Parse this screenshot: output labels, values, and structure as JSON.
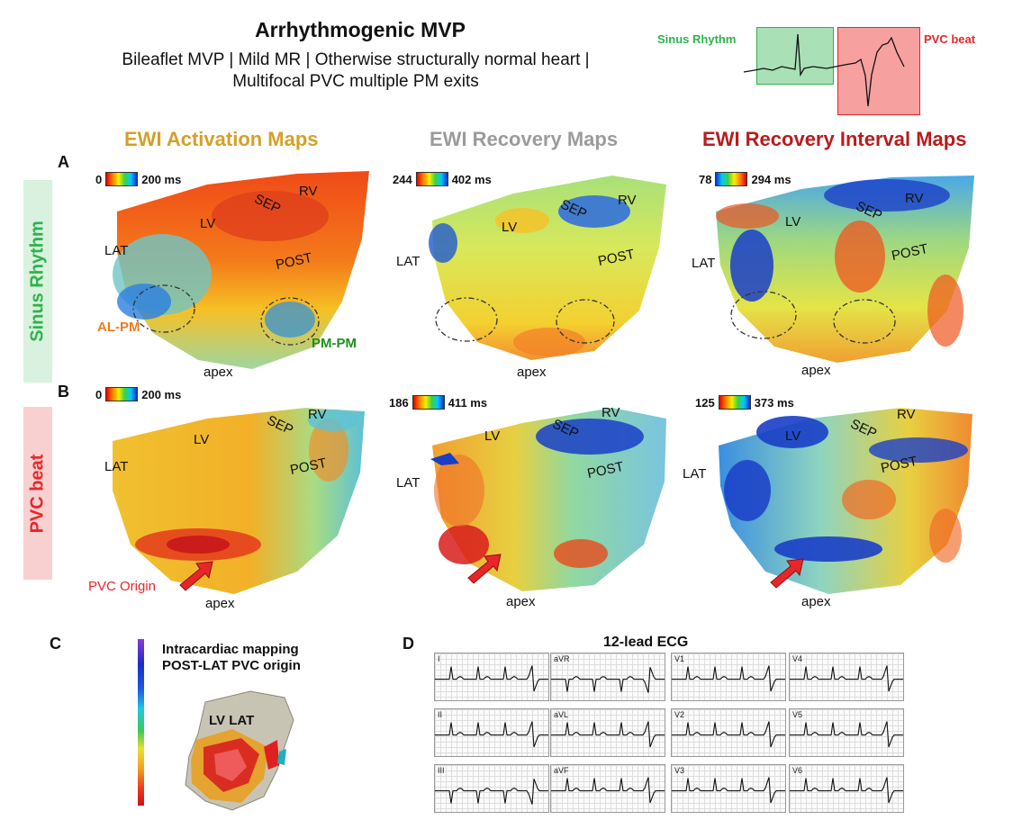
{
  "header": {
    "title": "Arrhythmogenic MVP",
    "subtitle_line1": "Bileaflet MVP | Mild MR | Otherwise structurally normal heart |",
    "subtitle_line2": "Multifocal PVC multiple PM exits"
  },
  "inset": {
    "sinus_label": "Sinus Rhythm",
    "pvc_label": "PVC beat",
    "sinus_color": "#2db34a",
    "pvc_color": "#e8262a"
  },
  "columns": [
    {
      "title": "EWI Activation Maps",
      "color": "#d4a02a"
    },
    {
      "title": "EWI Recovery Maps",
      "color": "#9b9b9b"
    },
    {
      "title": "EWI Recovery Interval Maps",
      "color": "#b81c1c"
    }
  ],
  "rows": [
    {
      "letter": "A",
      "label": "Sinus Rhythm",
      "label_color": "#2db34a",
      "bg": "#d9f2df"
    },
    {
      "letter": "B",
      "label": "PVC beat",
      "label_color": "#e8262a",
      "bg": "#f8d0d0"
    }
  ],
  "scales": {
    "a1": {
      "min": "0",
      "max": "200 ms"
    },
    "a2": {
      "min": "244",
      "max": "402 ms"
    },
    "a3": {
      "min": "78",
      "max": "294 ms"
    },
    "b1": {
      "min": "0",
      "max": "200 ms"
    },
    "b2": {
      "min": "186",
      "max": "411 ms"
    },
    "b3": {
      "min": "125",
      "max": "373 ms"
    }
  },
  "anatomy": {
    "lv": "LV",
    "sep": "SEP",
    "rv": "RV",
    "lat": "LAT",
    "post": "POST",
    "apex": "apex",
    "al_pm": "AL-PM",
    "pm_pm": "PM-PM",
    "pvc_origin": "PVC Origin",
    "al_pm_color": "#f07a20",
    "pm_pm_color": "#1f8f1f",
    "pvc_origin_color": "#e8262a"
  },
  "panel_c": {
    "letter": "C",
    "title_line1": "Intracardiac mapping",
    "title_line2": "POST-LAT PVC origin",
    "lv_lat": "LV LAT"
  },
  "panel_d": {
    "letter": "D",
    "title": "12-lead ECG",
    "leads": [
      "I",
      "aVR",
      "V1",
      "V4",
      "II",
      "aVL",
      "V2",
      "V5",
      "III",
      "aVF",
      "V3",
      "V6"
    ]
  }
}
